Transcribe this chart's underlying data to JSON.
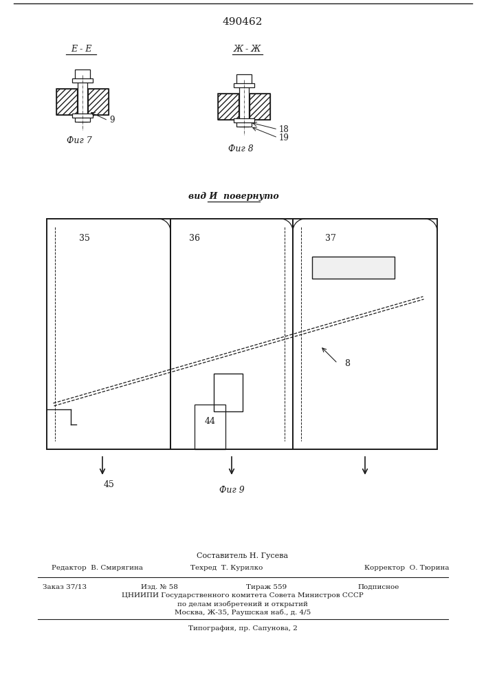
{
  "patent_number": "490462",
  "fig7_label": "Е - Е",
  "fig7_caption": "Фиг 7",
  "fig8_label": "Ж - Ж",
  "fig8_caption": "Фиг 8",
  "fig8_num18": "18",
  "fig8_num19": "19",
  "fig9_caption": "Фиг 9",
  "fig9_title": "вид И  повернуто",
  "fig9_num35": "35",
  "fig9_num36": "36",
  "fig9_num37": "37",
  "fig9_num44": "44",
  "fig9_num45": "45",
  "fig9_num8": "8",
  "footer_author": "Составитель Н. Гусева",
  "footer_editor": "Редактор  В. Смирягина",
  "footer_tech": "Техред  Т. Курилко",
  "footer_corrector": "Корректор  О. Тюрина",
  "footer_order": "Заказ 37/13",
  "footer_edition": "Изд. № 58",
  "footer_copies": "Тираж 559",
  "footer_subscription": "Подписное",
  "footer_org": "ЦНИИПИ Государственного комитета Совета Министров СССР",
  "footer_org2": "по делам изобретений и открытий",
  "footer_address": "Москва, Ж-35, Раушская наб., д. 4/5",
  "footer_print": "Типография, пр. Сапунова, 2",
  "bg_color": "#ffffff",
  "line_color": "#1a1a1a",
  "hatch_color": "#555555"
}
